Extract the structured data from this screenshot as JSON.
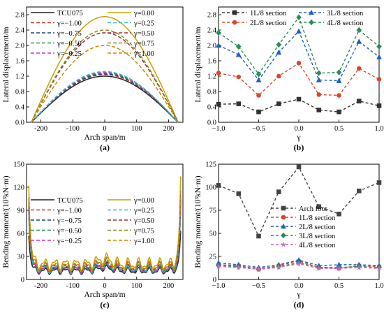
{
  "chart_data": [
    {
      "id": "a",
      "panel_label": "(a)",
      "type": "line",
      "xlabel": "Arch span/m",
      "ylabel": "Lateral displacement/m",
      "xlim": [
        -245,
        245
      ],
      "ylim": [
        0,
        3.0
      ],
      "xticks": [
        -200,
        -100,
        0,
        100,
        200
      ],
      "yticks": [
        0.0,
        0.4,
        0.8,
        1.2,
        1.6,
        2.0,
        2.4,
        2.8
      ],
      "xtick_labels": [
        "-200",
        "-100",
        "0",
        "100",
        "200"
      ],
      "ytick_labels": [
        "0.0",
        "0.4",
        "0.8",
        "1.2",
        "1.6",
        "2.0",
        "2.4",
        "2.8"
      ],
      "curve_span": [
        -230,
        230
      ],
      "legend_columns": 2,
      "series": [
        {
          "name": "TCU075",
          "color": "#222222",
          "dash": "solid",
          "peak": 1.2
        },
        {
          "name": "γ=−1.00",
          "color": "#c0392b",
          "dash": "dash",
          "peak": 1.24
        },
        {
          "name": "γ=−0.75",
          "color": "#1a3a8c",
          "dash": "dash",
          "peak": 1.26
        },
        {
          "name": "γ=−0.50",
          "color": "#2e8b57",
          "dash": "dash",
          "peak": 1.28
        },
        {
          "name": "γ=−0.25",
          "color": "#cc33cc",
          "dash": "dash",
          "peak": 1.3
        },
        {
          "name": "γ=0.00",
          "color": "#c8a000",
          "dash": "solid",
          "peak": 2.75
        },
        {
          "name": "γ=0.25",
          "color": "#33bbcc",
          "dash": "dash",
          "peak": 1.32
        },
        {
          "name": "γ=0.50",
          "color": "#993333",
          "dash": "dash",
          "peak": 2.33
        },
        {
          "name": "γ=0.75",
          "color": "#8a8a1a",
          "dash": "dash",
          "peak": 2.4
        },
        {
          "name": "γ=1.00",
          "color": "#cc8800",
          "dash": "dash",
          "peak": 2.0
        }
      ]
    },
    {
      "id": "b",
      "panel_label": "(b)",
      "type": "line",
      "xlabel": "γ",
      "ylabel": "Lateral displacement/m",
      "xlim": [
        -1.0,
        1.0
      ],
      "ylim": [
        0,
        3.0
      ],
      "xticks": [
        -1.0,
        -0.5,
        0.0,
        0.5,
        1.0
      ],
      "yticks": [
        0.0,
        0.4,
        0.8,
        1.2,
        1.6,
        2.0,
        2.4,
        2.8
      ],
      "xtick_labels": [
        "−1.0",
        "−0.5",
        "0.0",
        "0.5",
        "1.0"
      ],
      "ytick_labels": [
        "0.0",
        "0.4",
        "0.8",
        "1.2",
        "1.6",
        "2.0",
        "2.4",
        "2.8"
      ],
      "x": [
        -1.0,
        -0.75,
        -0.5,
        -0.25,
        0.0,
        0.25,
        0.5,
        0.75,
        1.0
      ],
      "legend_columns": 2,
      "series": [
        {
          "name": "1L/8 section",
          "color": "#333333",
          "marker": "square",
          "values": [
            0.47,
            0.48,
            0.27,
            0.48,
            0.6,
            0.32,
            0.27,
            0.55,
            0.43
          ]
        },
        {
          "name": "2L/8 section",
          "color": "#d9472b",
          "marker": "circle",
          "values": [
            1.28,
            1.18,
            0.7,
            1.2,
            1.54,
            0.72,
            0.7,
            1.4,
            1.12
          ]
        },
        {
          "name": "3L/8 section",
          "color": "#1f5fbf",
          "marker": "triangle",
          "values": [
            2.0,
            1.76,
            1.1,
            1.82,
            2.37,
            1.1,
            1.08,
            2.1,
            1.7
          ]
        },
        {
          "name": "4L/8 section",
          "color": "#2e8b57",
          "marker": "diamond",
          "values": [
            2.33,
            1.97,
            1.25,
            2.02,
            2.73,
            1.28,
            1.3,
            2.4,
            1.97
          ]
        }
      ]
    },
    {
      "id": "c",
      "panel_label": "(c)",
      "type": "line",
      "xlabel": "Arch span/m",
      "ylabel": "Bending moment/(10³kN·m)",
      "xlim": [
        -245,
        245
      ],
      "ylim": [
        0,
        150
      ],
      "xticks": [
        -200,
        -100,
        0,
        100,
        200
      ],
      "yticks": [
        0,
        30,
        60,
        90,
        120,
        150
      ],
      "xtick_labels": [
        "-200",
        "-100",
        "0",
        "100",
        "200"
      ],
      "ytick_labels": [
        "0",
        "30",
        "60",
        "90",
        "120",
        "150"
      ],
      "curve_span": [
        -238,
        238
      ],
      "legend_columns": 2,
      "series": [
        {
          "name": "TCU075",
          "color": "#222222",
          "dash": "solid",
          "edge": 60,
          "mid": 11
        },
        {
          "name": "γ=−1.00",
          "color": "#c0392b",
          "dash": "dash",
          "edge": 100,
          "mid": 14
        },
        {
          "name": "γ=−0.75",
          "color": "#1a3a8c",
          "dash": "dash",
          "edge": 95,
          "mid": 13
        },
        {
          "name": "γ=−0.50",
          "color": "#2e8b57",
          "dash": "dash",
          "edge": 85,
          "mid": 12
        },
        {
          "name": "γ=−0.25",
          "color": "#cc33cc",
          "dash": "dash",
          "edge": 90,
          "mid": 13
        },
        {
          "name": "γ=0.00",
          "color": "#c8a000",
          "dash": "solid",
          "edge": 128,
          "mid": 20
        },
        {
          "name": "γ=0.25",
          "color": "#33bbcc",
          "dash": "dash",
          "edge": 88,
          "mid": 14
        },
        {
          "name": "γ=0.50",
          "color": "#993333",
          "dash": "dash",
          "edge": 105,
          "mid": 16
        },
        {
          "name": "γ=0.75",
          "color": "#8a8a1a",
          "dash": "dash",
          "edge": 110,
          "mid": 17
        },
        {
          "name": "γ=1.00",
          "color": "#cc8800",
          "dash": "dash",
          "edge": 112,
          "mid": 17
        }
      ]
    },
    {
      "id": "d",
      "panel_label": "(d)",
      "type": "line",
      "xlabel": "γ",
      "ylabel": "Bending moment/(10³kN·m)",
      "xlim": [
        -1.0,
        1.0
      ],
      "ylim": [
        0,
        125
      ],
      "xticks": [
        -1.0,
        -0.5,
        0.0,
        0.5,
        1.0
      ],
      "yticks": [
        0,
        25,
        50,
        75,
        100,
        125
      ],
      "xtick_labels": [
        "−1.0",
        "−0.5",
        "0.0",
        "0.5",
        "1.0"
      ],
      "ytick_labels": [
        "0",
        "25",
        "50",
        "75",
        "100",
        "125"
      ],
      "x": [
        -1.0,
        -0.75,
        -0.5,
        -0.25,
        0.0,
        0.25,
        0.5,
        0.75,
        1.0
      ],
      "legend_columns": 1,
      "series": [
        {
          "name": "Arch foot",
          "color": "#444444",
          "marker": "square",
          "values": [
            102,
            93,
            47,
            95,
            122,
            79,
            71,
            96,
            105
          ]
        },
        {
          "name": "1L/8 section",
          "color": "#d9472b",
          "marker": "circle",
          "values": [
            16,
            15,
            11,
            15,
            20,
            13,
            12,
            15,
            14
          ]
        },
        {
          "name": "2L/8 section",
          "color": "#1f5fbf",
          "marker": "triangle",
          "values": [
            18,
            16,
            13,
            16,
            21,
            15,
            16,
            16,
            15
          ]
        },
        {
          "name": "3L/8 section",
          "color": "#2e8b57",
          "marker": "diamond",
          "values": [
            15,
            14,
            12,
            14,
            18,
            13,
            13,
            14,
            13
          ]
        },
        {
          "name": "4L/8 section",
          "color": "#cc66cc",
          "marker": "star",
          "values": [
            14,
            13,
            11,
            13,
            17,
            12,
            12,
            13,
            12
          ]
        }
      ]
    }
  ]
}
